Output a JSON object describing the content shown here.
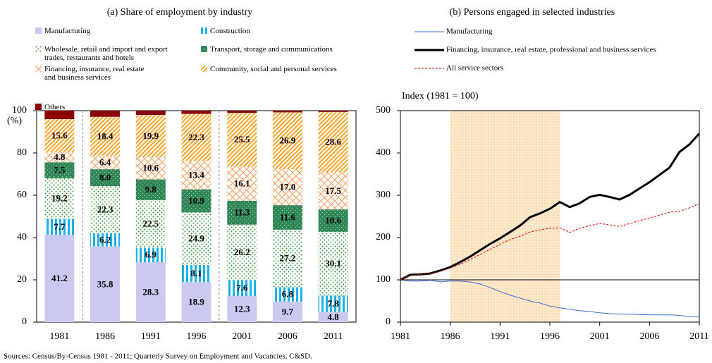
{
  "chart_data": [
    {
      "type": "stacked-bar",
      "title": "(a) Share of employment by industry",
      "y_label": "(%)",
      "categories": [
        "1981",
        "1986",
        "1991",
        "1996",
        "2001",
        "2006",
        "2011"
      ],
      "ylim": [
        0,
        100
      ],
      "yticks": [
        0,
        20,
        40,
        60,
        80,
        100
      ],
      "series": [
        {
          "name": "Manufacturing",
          "color": "#c9c9f2",
          "pattern": "solid",
          "values": [
            41.2,
            35.8,
            28.3,
            18.9,
            12.3,
            9.7,
            4.8
          ]
        },
        {
          "name": "Construction",
          "color": "#1ab0e8",
          "pattern": "stripes-v",
          "values": [
            7.7,
            6.2,
            6.9,
            8.1,
            7.6,
            6.8,
            7.8
          ]
        },
        {
          "name": "Wholesale, retail and import and export trades, restaurants and hotels",
          "color": "#3a9a3a",
          "pattern": "dots",
          "values": [
            19.2,
            22.3,
            22.5,
            24.9,
            26.2,
            27.2,
            30.1
          ]
        },
        {
          "name": "Transport, storage and communications",
          "color": "#2e8555",
          "pattern": "dots-dark",
          "values": [
            7.5,
            8.0,
            9.8,
            10.9,
            11.3,
            11.6,
            10.6
          ],
          "value_labels": [
            "7.5",
            "8.0",
            "9.8",
            "10.9",
            "11.3",
            "11.6",
            "10.6"
          ]
        },
        {
          "name": "Financing, insurance, real estate and business services",
          "color": "#ff9c5a",
          "pattern": "cross",
          "values": [
            4.8,
            6.4,
            10.6,
            13.4,
            16.1,
            17.0,
            17.5
          ],
          "value_labels": [
            "4.8",
            "6.4",
            "10.6",
            "13.4",
            "16.1",
            "17.0",
            "17.5"
          ]
        },
        {
          "name": "Community, social and personal services",
          "color": "#ffa834",
          "pattern": "diag",
          "values": [
            15.6,
            18.4,
            19.9,
            22.3,
            25.5,
            26.9,
            28.6
          ]
        },
        {
          "name": "Others",
          "color": "#8b0000",
          "pattern": "solid",
          "values": [
            4.0,
            2.9,
            2.0,
            1.5,
            1.0,
            0.8,
            0.6
          ]
        }
      ]
    },
    {
      "type": "line",
      "title": "(b) Persons engaged in selected industries",
      "y_label": "Index (1981 = 100)",
      "x": [
        1981,
        1982,
        1983,
        1984,
        1985,
        1986,
        1987,
        1988,
        1989,
        1990,
        1991,
        1992,
        1993,
        1994,
        1995,
        1996,
        1997,
        1998,
        1999,
        2000,
        2001,
        2002,
        2003,
        2004,
        2005,
        2006,
        2007,
        2008,
        2009,
        2010,
        2011
      ],
      "xlim": [
        1981,
        2011
      ],
      "xticks": [
        1981,
        1986,
        1991,
        1996,
        2001,
        2006,
        2011
      ],
      "ylim": [
        0,
        500
      ],
      "yticks": [
        0,
        100,
        200,
        300,
        400,
        500
      ],
      "reference_line": 100,
      "shaded_span": [
        1986,
        1997
      ],
      "series": [
        {
          "name": "Manufacturing",
          "color": "#3b6fd6",
          "width": 1,
          "style": "solid",
          "values": [
            100,
            97,
            97,
            99,
            95,
            97,
            97,
            95,
            90,
            82,
            72,
            64,
            57,
            50,
            45,
            38,
            34,
            30,
            27,
            25,
            22,
            20,
            19,
            19,
            18,
            17,
            17,
            17,
            16,
            13,
            12
          ]
        },
        {
          "name": "Financing, insurance, real estate, professional and business services",
          "color": "#000000",
          "width": 3,
          "style": "solid",
          "values": [
            100,
            112,
            113,
            115,
            122,
            130,
            142,
            155,
            170,
            185,
            198,
            213,
            228,
            248,
            257,
            268,
            284,
            272,
            281,
            296,
            301,
            296,
            290,
            301,
            316,
            331,
            348,
            365,
            402,
            420,
            446
          ]
        },
        {
          "name": "All service sectors",
          "color": "#e00000",
          "width": 1,
          "style": "dashed",
          "values": [
            100,
            110,
            113,
            115,
            120,
            128,
            137,
            148,
            160,
            172,
            184,
            195,
            203,
            213,
            218,
            222,
            223,
            212,
            222,
            228,
            233,
            230,
            226,
            233,
            240,
            246,
            253,
            260,
            262,
            270,
            280
          ]
        }
      ]
    }
  ],
  "source": "Sources: Census/By-Census 1981 - 2011; Quarterly Survey on Employment and Vacancies, C&SD."
}
